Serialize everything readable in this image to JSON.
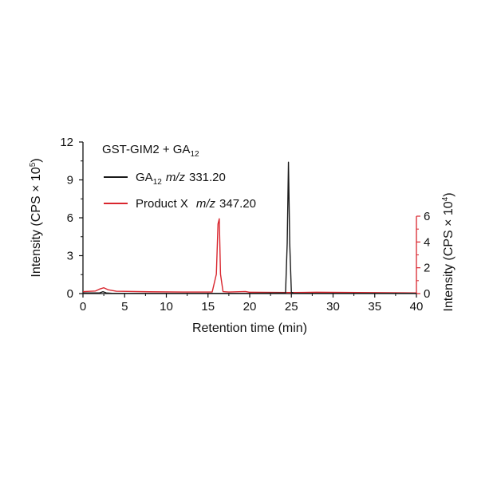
{
  "chart_data": {
    "type": "line",
    "title": "GST-GIM2 + GA",
    "title_sub": "12",
    "xlabel": "Retention time (min)",
    "ylabel_left": "Intensity (CPS × 10",
    "ylabel_left_sup": "5",
    "ylabel_left_close": ")",
    "ylabel_right": "Intensity (CPS × 10",
    "ylabel_right_sup": "4",
    "ylabel_right_close": ")",
    "xlim": [
      0,
      40
    ],
    "x_ticks": [
      "0",
      "5",
      "10",
      "15",
      "20",
      "25",
      "30",
      "35",
      "40"
    ],
    "ylim_left": [
      0,
      12
    ],
    "y_left_ticks": [
      "0",
      "3",
      "6",
      "9",
      "12"
    ],
    "ylim_right": [
      0,
      6
    ],
    "y_right_ticks": [
      "0",
      "2",
      "4",
      "6"
    ],
    "grid": false,
    "legend_position": "top-left",
    "series": [
      {
        "name": "GA",
        "name_sub": "12",
        "mz_label": "m/z",
        "mz_value": "331.20",
        "color": "#1a1a1a",
        "axis": "left",
        "x": [
          0,
          2,
          2.4,
          2.8,
          3.5,
          10,
          20,
          24.3,
          24.5,
          24.65,
          24.8,
          25.0,
          25.3,
          30,
          40
        ],
        "y": [
          0.05,
          0.05,
          0.15,
          0.05,
          0.02,
          0.02,
          0.02,
          0.05,
          4.0,
          10.4,
          4.0,
          0.1,
          0.02,
          0.02,
          0.02
        ]
      },
      {
        "name": "Product X",
        "mz_label": "m/z",
        "mz_value": "347.20",
        "color": "#d9262e",
        "axis": "right",
        "x": [
          0,
          1.5,
          2.0,
          2.5,
          3.0,
          4.0,
          8,
          12,
          15.5,
          16.0,
          16.2,
          16.35,
          16.5,
          16.8,
          17.5,
          19.5,
          20,
          25,
          28,
          33,
          40
        ],
        "y": [
          0.15,
          0.2,
          0.35,
          0.45,
          0.3,
          0.18,
          0.14,
          0.12,
          0.12,
          1.5,
          5.4,
          5.8,
          1.5,
          0.15,
          0.12,
          0.16,
          0.1,
          0.08,
          0.1,
          0.08,
          0.05
        ]
      }
    ]
  }
}
